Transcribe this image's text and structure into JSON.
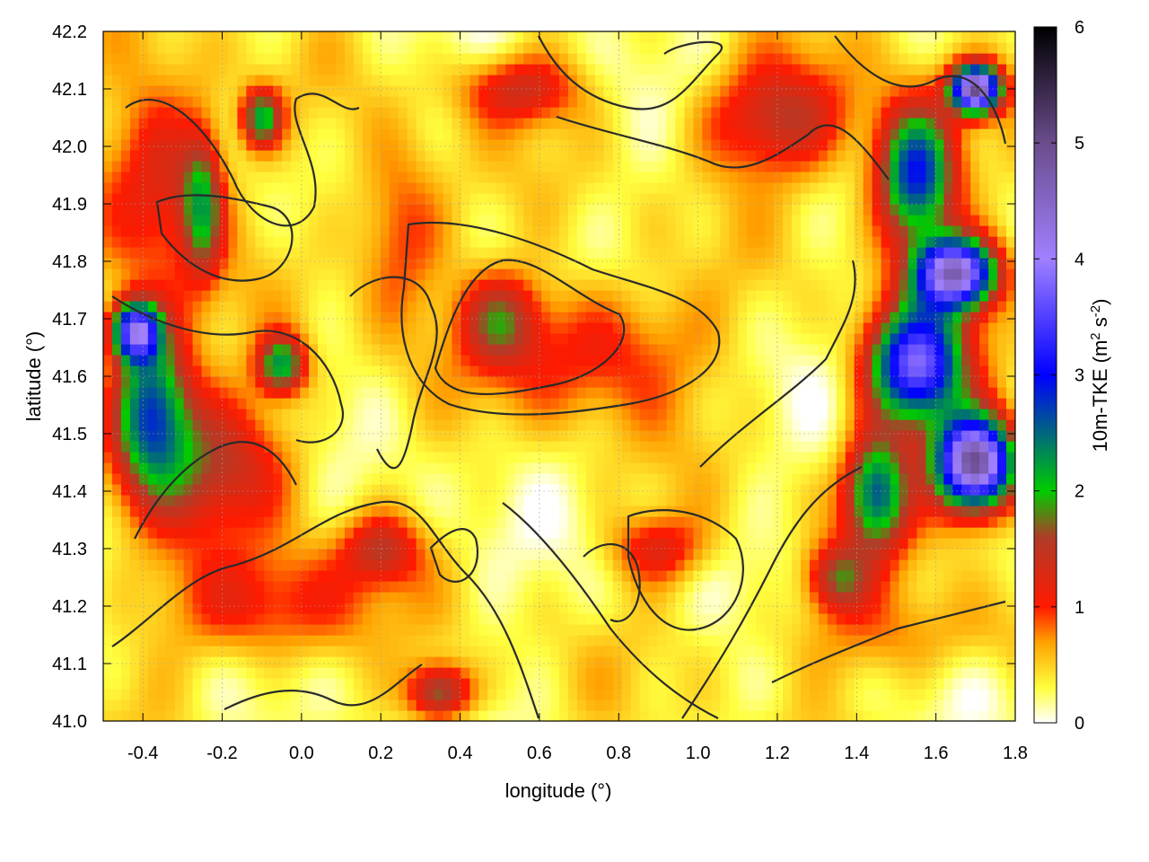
{
  "chart_data": {
    "type": "heatmap",
    "title": "",
    "xlabel": "longitude (°)",
    "ylabel": "latitude (°)",
    "colorbar_label": "10m-TKE (m² s⁻²)",
    "colorbar_label_parts": [
      "10m-TKE (m",
      "2",
      " s",
      "-2",
      ")"
    ],
    "xlim": [
      -0.5,
      1.8
    ],
    "ylim": [
      41.0,
      42.2
    ],
    "x_ticks": [
      -0.4,
      -0.2,
      0.0,
      0.2,
      0.4,
      0.6,
      0.8,
      1.0,
      1.2,
      1.4,
      1.6,
      1.8
    ],
    "x_tick_labels": [
      "-0.4",
      "-0.2",
      "0.0",
      "0.2",
      "0.4",
      "0.6",
      "0.8",
      "1.0",
      "1.2",
      "1.4",
      "1.6",
      "1.8"
    ],
    "y_ticks": [
      41.0,
      41.1,
      41.2,
      41.3,
      41.4,
      41.5,
      41.6,
      41.7,
      41.8,
      41.9,
      42.0,
      42.1,
      42.2
    ],
    "y_tick_labels": [
      "41.0",
      "41.1",
      "41.2",
      "41.3",
      "41.4",
      "41.5",
      "41.6",
      "41.7",
      "41.8",
      "41.9",
      "42.0",
      "42.1",
      "42.2"
    ],
    "colorbar_range": [
      0,
      6
    ],
    "colorbar_ticks": [
      0,
      1,
      2,
      3,
      4,
      5,
      6
    ],
    "colorbar_tick_labels": [
      "0",
      "1",
      "2",
      "3",
      "4",
      "5",
      "6"
    ],
    "colormap": [
      {
        "value": 0.0,
        "color": "#ffffff"
      },
      {
        "value": 0.3,
        "color": "#ffff40"
      },
      {
        "value": 0.7,
        "color": "#ffa000"
      },
      {
        "value": 1.0,
        "color": "#ff1a00"
      },
      {
        "value": 1.6,
        "color": "#b03c28"
      },
      {
        "value": 2.0,
        "color": "#00cc00"
      },
      {
        "value": 3.0,
        "color": "#0000ff"
      },
      {
        "value": 4.0,
        "color": "#a080ff"
      },
      {
        "value": 5.0,
        "color": "#6a4c8c"
      },
      {
        "value": 6.0,
        "color": "#000000"
      }
    ],
    "grid": true,
    "contours": true,
    "hotspots": [
      {
        "lon": -0.35,
        "lat": 41.95,
        "tke": 1.1,
        "sx": 0.15,
        "sy": 0.18
      },
      {
        "lon": -0.25,
        "lat": 41.9,
        "tke": 1.4,
        "sx": 0.05,
        "sy": 0.12
      },
      {
        "lon": -0.1,
        "lat": 42.05,
        "tke": 1.8,
        "sx": 0.05,
        "sy": 0.05
      },
      {
        "lon": -0.38,
        "lat": 41.55,
        "tke": 2.4,
        "sx": 0.1,
        "sy": 0.14
      },
      {
        "lon": -0.42,
        "lat": 41.68,
        "tke": 3.2,
        "sx": 0.06,
        "sy": 0.05
      },
      {
        "lon": -0.2,
        "lat": 41.45,
        "tke": 1.1,
        "sx": 0.2,
        "sy": 0.12
      },
      {
        "lon": -0.05,
        "lat": 41.62,
        "tke": 1.9,
        "sx": 0.06,
        "sy": 0.05
      },
      {
        "lon": 0.5,
        "lat": 41.7,
        "tke": 1.1,
        "sx": 0.1,
        "sy": 0.08
      },
      {
        "lon": 0.75,
        "lat": 41.65,
        "tke": 0.9,
        "sx": 0.25,
        "sy": 0.12
      },
      {
        "lon": 0.25,
        "lat": 41.85,
        "tke": 0.9,
        "sx": 0.12,
        "sy": 0.15
      },
      {
        "lon": 0.35,
        "lat": 41.05,
        "tke": 1.6,
        "sx": 0.08,
        "sy": 0.05
      },
      {
        "lon": 0.2,
        "lat": 41.3,
        "tke": 1.0,
        "sx": 0.1,
        "sy": 0.06
      },
      {
        "lon": 0.9,
        "lat": 41.3,
        "tke": 0.9,
        "sx": 0.12,
        "sy": 0.06
      },
      {
        "lon": 0.55,
        "lat": 42.1,
        "tke": 1.0,
        "sx": 0.15,
        "sy": 0.06
      },
      {
        "lon": 1.2,
        "lat": 42.05,
        "tke": 1.2,
        "sx": 0.2,
        "sy": 0.1
      },
      {
        "lon": 1.55,
        "lat": 41.95,
        "tke": 2.8,
        "sx": 0.1,
        "sy": 0.12
      },
      {
        "lon": 1.7,
        "lat": 42.1,
        "tke": 4.5,
        "sx": 0.06,
        "sy": 0.04
      },
      {
        "lon": 1.65,
        "lat": 41.78,
        "tke": 4.0,
        "sx": 0.1,
        "sy": 0.06
      },
      {
        "lon": 1.55,
        "lat": 41.62,
        "tke": 3.4,
        "sx": 0.12,
        "sy": 0.1
      },
      {
        "lon": 1.7,
        "lat": 41.45,
        "tke": 4.8,
        "sx": 0.1,
        "sy": 0.08
      },
      {
        "lon": 1.45,
        "lat": 41.4,
        "tke": 2.2,
        "sx": 0.08,
        "sy": 0.1
      },
      {
        "lon": 1.35,
        "lat": 41.25,
        "tke": 1.3,
        "sx": 0.08,
        "sy": 0.06
      },
      {
        "lon": 1.5,
        "lat": 41.15,
        "tke": 0.45,
        "sx": 0.4,
        "sy": 0.08
      },
      {
        "lon": -0.1,
        "lat": 41.2,
        "tke": 0.9,
        "sx": 0.25,
        "sy": 0.1
      }
    ]
  }
}
